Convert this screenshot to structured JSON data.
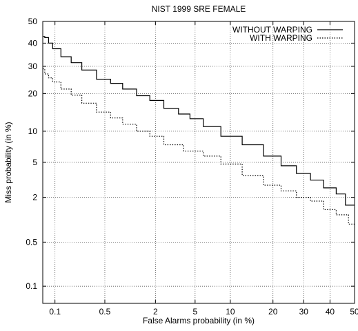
{
  "chart_data": {
    "type": "line",
    "title": "NIST 1999 SRE FEMALE",
    "xlabel": "False Alarms probability (in %)",
    "ylabel": "Miss probability (in %)",
    "x_scale": "probit",
    "y_scale": "probit",
    "xlim": [
      0.065,
      50
    ],
    "ylim": [
      0.05,
      50
    ],
    "x_ticks": [
      {
        "value": 0.1,
        "label": "0.1"
      },
      {
        "value": 0.5,
        "label": "0.5"
      },
      {
        "value": 2,
        "label": "2"
      },
      {
        "value": 5,
        "label": "5"
      },
      {
        "value": 10,
        "label": "10"
      },
      {
        "value": 20,
        "label": "20"
      },
      {
        "value": 30,
        "label": "30"
      },
      {
        "value": 40,
        "label": "40"
      },
      {
        "value": 50,
        "label": "50"
      }
    ],
    "y_ticks": [
      {
        "value": 0.1,
        "label": "0.1"
      },
      {
        "value": 0.5,
        "label": "0.5"
      },
      {
        "value": 2,
        "label": "2"
      },
      {
        "value": 5,
        "label": "5"
      },
      {
        "value": 10,
        "label": "10"
      },
      {
        "value": 20,
        "label": "20"
      },
      {
        "value": 30,
        "label": "30"
      },
      {
        "value": 40,
        "label": "40"
      },
      {
        "value": 50,
        "label": "50"
      }
    ],
    "grid": true,
    "legend_position": "top-right",
    "series": [
      {
        "name": "WITHOUT WARPING",
        "style": "solid",
        "color": "#000000",
        "points": [
          [
            0.065,
            43
          ],
          [
            0.075,
            42.5
          ],
          [
            0.085,
            40
          ],
          [
            0.1,
            37.5
          ],
          [
            0.15,
            34
          ],
          [
            0.2,
            31.5
          ],
          [
            0.3,
            28.5
          ],
          [
            0.5,
            25
          ],
          [
            0.7,
            23.5
          ],
          [
            1,
            21.5
          ],
          [
            1.5,
            19.3
          ],
          [
            2,
            17.8
          ],
          [
            3,
            15.5
          ],
          [
            4,
            14
          ],
          [
            5,
            12.8
          ],
          [
            7,
            11
          ],
          [
            10,
            9
          ],
          [
            15,
            7.5
          ],
          [
            20,
            5.8
          ],
          [
            25,
            4.6
          ],
          [
            30,
            3.8
          ],
          [
            35,
            3.2
          ],
          [
            40,
            2.6
          ],
          [
            45,
            2.2
          ],
          [
            47.5,
            1.6
          ],
          [
            50,
            1.6
          ]
        ]
      },
      {
        "name": "WITH WARPING",
        "style": "dotted",
        "color": "#000000",
        "points": [
          [
            0.065,
            29
          ],
          [
            0.075,
            27
          ],
          [
            0.085,
            25.5
          ],
          [
            0.1,
            24
          ],
          [
            0.15,
            21.5
          ],
          [
            0.2,
            19.5
          ],
          [
            0.3,
            17
          ],
          [
            0.5,
            14.5
          ],
          [
            0.7,
            13
          ],
          [
            1,
            11.5
          ],
          [
            1.5,
            10
          ],
          [
            2,
            9
          ],
          [
            3,
            7.5
          ],
          [
            5,
            6.5
          ],
          [
            7,
            5.8
          ],
          [
            10,
            4.8
          ],
          [
            15,
            3.6
          ],
          [
            20,
            2.8
          ],
          [
            25,
            2.4
          ],
          [
            30,
            2
          ],
          [
            35,
            1.8
          ],
          [
            40,
            1.4
          ],
          [
            45,
            1.2
          ],
          [
            50,
            0.9
          ]
        ]
      }
    ]
  }
}
